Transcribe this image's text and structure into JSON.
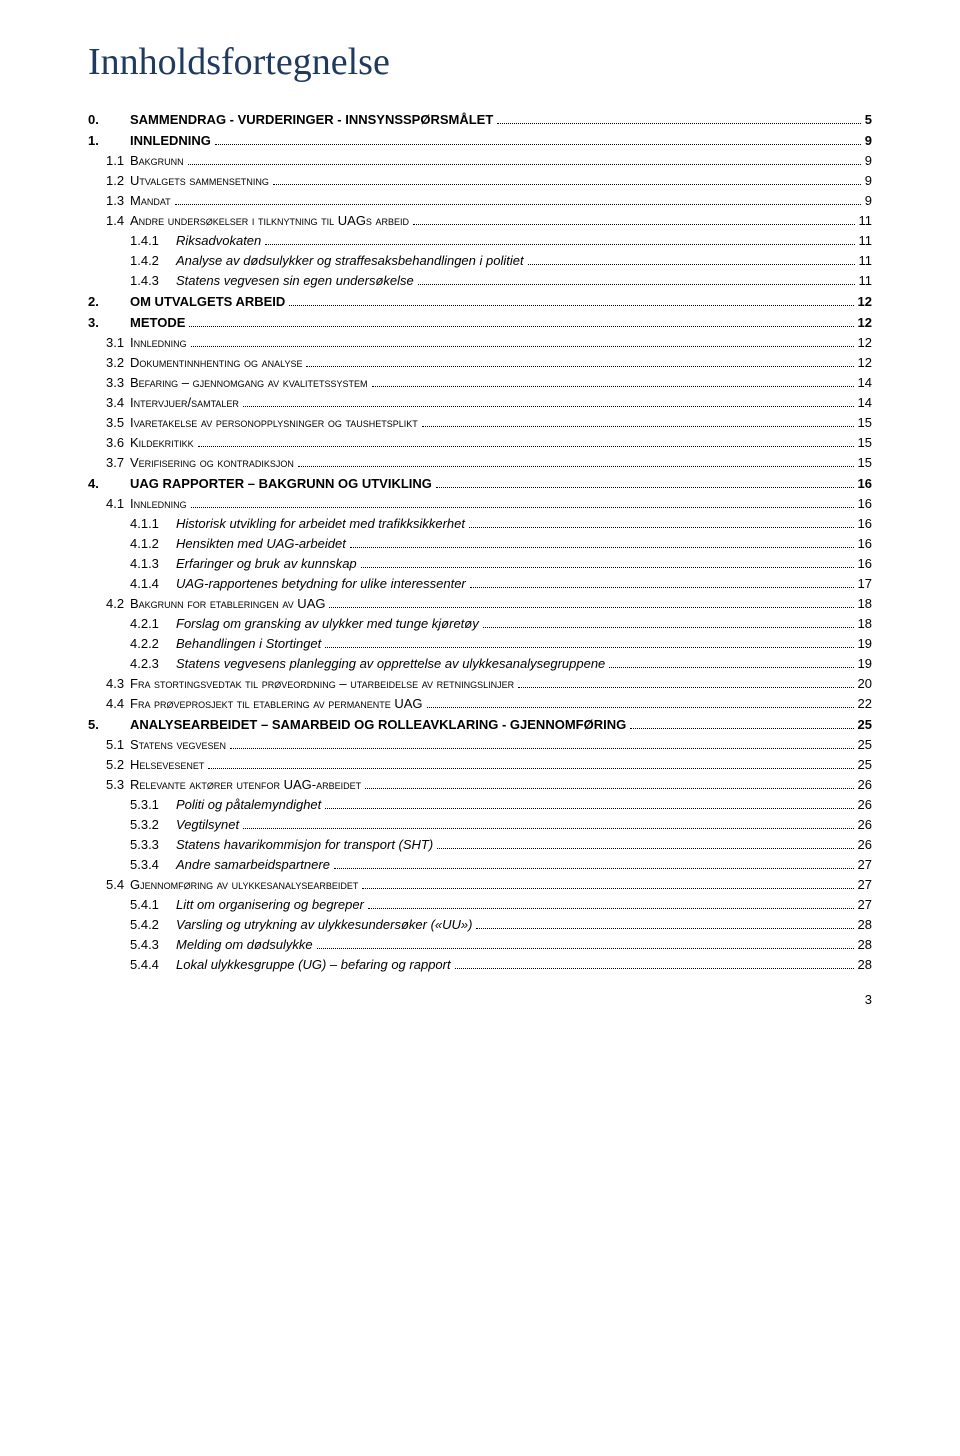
{
  "title": "Innholdsfortegnelse",
  "title_color": "#1f3a5f",
  "page_number": "3",
  "entries": [
    {
      "lvl": 1,
      "num": "0.",
      "text": "SAMMENDRAG - VURDERINGER - INNSYNSSPØRSMÅLET",
      "page": "5"
    },
    {
      "lvl": 1,
      "num": "1.",
      "text": "INNLEDNING",
      "page": "9"
    },
    {
      "lvl": 2,
      "num": "1.1",
      "text": "Bakgrunn",
      "page": "9"
    },
    {
      "lvl": 2,
      "num": "1.2",
      "text": "Utvalgets sammensetning",
      "page": "9"
    },
    {
      "lvl": 2,
      "num": "1.3",
      "text": "Mandat",
      "page": "9"
    },
    {
      "lvl": 2,
      "num": "1.4",
      "text": "Andre undersøkelser i tilknytning til UAGs arbeid",
      "page": "11"
    },
    {
      "lvl": 3,
      "num": "1.4.1",
      "text": "Riksadvokaten",
      "page": "11"
    },
    {
      "lvl": 3,
      "num": "1.4.2",
      "text": "Analyse av dødsulykker og straffesaksbehandlingen i politiet",
      "page": "11"
    },
    {
      "lvl": 3,
      "num": "1.4.3",
      "text": "Statens vegvesen sin egen undersøkelse",
      "page": "11"
    },
    {
      "lvl": 1,
      "num": "2.",
      "text": "OM UTVALGETS ARBEID",
      "page": "12"
    },
    {
      "lvl": 1,
      "num": "3.",
      "text": "METODE",
      "page": "12"
    },
    {
      "lvl": 2,
      "num": "3.1",
      "text": "Innledning",
      "page": "12"
    },
    {
      "lvl": 2,
      "num": "3.2",
      "text": "Dokumentinnhenting og analyse",
      "page": "12"
    },
    {
      "lvl": 2,
      "num": "3.3",
      "text": "Befaring – gjennomgang av kvalitetssystem",
      "page": "14"
    },
    {
      "lvl": 2,
      "num": "3.4",
      "text": "Intervjuer/samtaler",
      "page": "14"
    },
    {
      "lvl": 2,
      "num": "3.5",
      "text": "Ivaretakelse av personopplysninger og taushetsplikt",
      "page": "15"
    },
    {
      "lvl": 2,
      "num": "3.6",
      "text": "Kildekritikk",
      "page": "15"
    },
    {
      "lvl": 2,
      "num": "3.7",
      "text": "Verifisering og kontradiksjon",
      "page": "15"
    },
    {
      "lvl": 1,
      "num": "4.",
      "text": "UAG RAPPORTER – BAKGRUNN OG UTVIKLING",
      "page": "16"
    },
    {
      "lvl": 2,
      "num": "4.1",
      "text": "Innledning",
      "page": "16"
    },
    {
      "lvl": 3,
      "num": "4.1.1",
      "text": "Historisk utvikling for arbeidet med trafikksikkerhet",
      "page": "16"
    },
    {
      "lvl": 3,
      "num": "4.1.2",
      "text": "Hensikten med UAG-arbeidet",
      "page": "16"
    },
    {
      "lvl": 3,
      "num": "4.1.3",
      "text": "Erfaringer og bruk av kunnskap",
      "page": "16"
    },
    {
      "lvl": 3,
      "num": "4.1.4",
      "text": "UAG-rapportenes betydning for ulike interessenter",
      "page": "17"
    },
    {
      "lvl": 2,
      "num": "4.2",
      "text": "Bakgrunn for etableringen av UAG",
      "page": "18"
    },
    {
      "lvl": 3,
      "num": "4.2.1",
      "text": "Forslag om gransking av ulykker med tunge kjøretøy",
      "page": "18"
    },
    {
      "lvl": 3,
      "num": "4.2.2",
      "text": "Behandlingen i Stortinget",
      "page": "19"
    },
    {
      "lvl": 3,
      "num": "4.2.3",
      "text": "Statens vegvesens planlegging av opprettelse av ulykkesanalysegruppene",
      "page": "19"
    },
    {
      "lvl": 2,
      "num": "4.3",
      "text": "Fra stortingsvedtak til prøveordning – utarbeidelse av retningslinjer",
      "page": "20"
    },
    {
      "lvl": 2,
      "num": "4.4",
      "text": "Fra prøveprosjekt til etablering av permanente UAG",
      "page": "22"
    },
    {
      "lvl": 1,
      "num": "5.",
      "text": "ANALYSEARBEIDET – SAMARBEID OG ROLLEAVKLARING - GJENNOMFØRING",
      "page": "25"
    },
    {
      "lvl": 2,
      "num": "5.1",
      "text": "Statens vegvesen",
      "page": "25"
    },
    {
      "lvl": 2,
      "num": "5.2",
      "text": "Helsevesenet",
      "page": "25"
    },
    {
      "lvl": 2,
      "num": "5.3",
      "text": "Relevante aktører utenfor UAG-arbeidet",
      "page": "26"
    },
    {
      "lvl": 3,
      "num": "5.3.1",
      "text": "Politi og påtalemyndighet",
      "page": "26"
    },
    {
      "lvl": 3,
      "num": "5.3.2",
      "text": "Vegtilsynet",
      "page": "26"
    },
    {
      "lvl": 3,
      "num": "5.3.3",
      "text": "Statens havarikommisjon for transport (SHT)",
      "page": "26"
    },
    {
      "lvl": 3,
      "num": "5.3.4",
      "text": "Andre samarbeidspartnere",
      "page": "27"
    },
    {
      "lvl": 2,
      "num": "5.4",
      "text": "Gjennomføring av ulykkesanalysearbeidet",
      "page": "27"
    },
    {
      "lvl": 3,
      "num": "5.4.1",
      "text": "Litt om organisering og begreper",
      "page": "27"
    },
    {
      "lvl": 3,
      "num": "5.4.2",
      "text": "Varsling og utrykning av ulykkesundersøker («UU»)",
      "page": "28"
    },
    {
      "lvl": 3,
      "num": "5.4.3",
      "text": "Melding om dødsulykke",
      "page": "28"
    },
    {
      "lvl": 3,
      "num": "5.4.4",
      "text": "Lokal ulykkesgruppe (UG) – befaring og rapport",
      "page": "28"
    }
  ]
}
